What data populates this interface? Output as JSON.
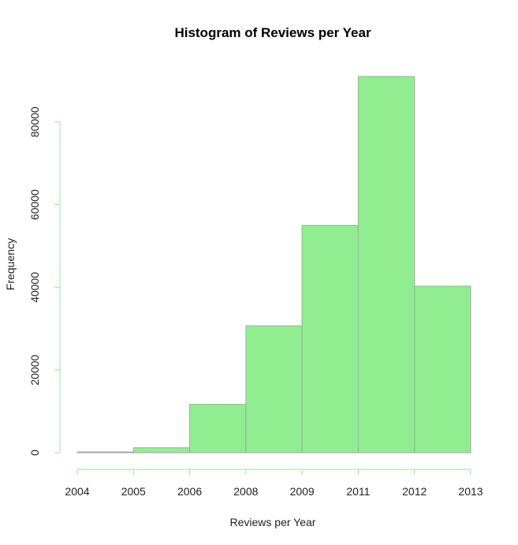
{
  "chart_data": {
    "type": "bar",
    "title": "Histogram of Reviews per Year",
    "xlabel": "Reviews per Year",
    "ylabel": "Frequency",
    "categories": [
      "2004–2005",
      "2005–2006",
      "2006–2008",
      "2008–2009",
      "2009–2011",
      "2011–2012",
      "2012–2013"
    ],
    "x_ticks": [
      "2004",
      "2005",
      "2006",
      "2008",
      "2009",
      "2011",
      "2012",
      "2013"
    ],
    "y_ticks": [
      "0",
      "20000",
      "40000",
      "60000",
      "80000"
    ],
    "y_tick_values": [
      0,
      20000,
      40000,
      60000,
      80000
    ],
    "values": [
      200,
      1200,
      11700,
      30700,
      55000,
      91000,
      40300
    ],
    "ylim": [
      0,
      91000
    ],
    "grid": false,
    "colors": {
      "bar_fill": "#90ee90",
      "bar_border": "#a6a6a6",
      "axis": "#90ee90"
    }
  }
}
